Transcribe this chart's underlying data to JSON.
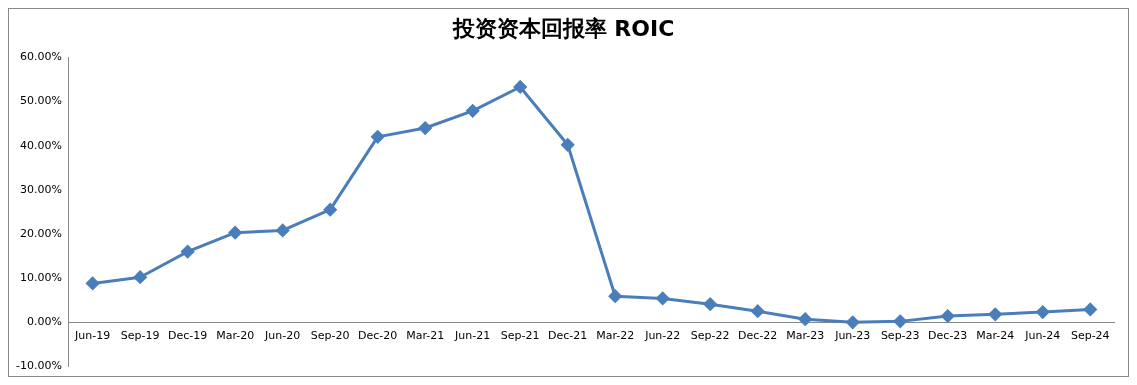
{
  "chart_data": {
    "type": "line",
    "title": "投资资本回报率 ROIC",
    "categories": [
      "Jun-19",
      "Sep-19",
      "Dec-19",
      "Mar-20",
      "Jun-20",
      "Sep-20",
      "Dec-20",
      "Mar-21",
      "Jun-21",
      "Sep-21",
      "Dec-21",
      "Mar-22",
      "Jun-22",
      "Sep-22",
      "Dec-22",
      "Mar-23",
      "Jun-23",
      "Sep-23",
      "Dec-23",
      "Mar-24",
      "Jun-24",
      "Sep-24"
    ],
    "series": [
      {
        "color": "#4a7ebb",
        "values": [
          8.8,
          10.2,
          16.0,
          20.3,
          20.8,
          25.5,
          42.0,
          44.0,
          47.9,
          53.3,
          40.2,
          5.9,
          5.4,
          4.1,
          2.5,
          0.7,
          0,
          0.2,
          1.4,
          1.8,
          2.3,
          2.9
        ]
      }
    ],
    "ylim": [
      -10,
      60
    ],
    "yticks": [
      {
        "value": -10,
        "label": "-10.00%"
      },
      {
        "value": 0,
        "label": "0.00%"
      },
      {
        "value": 10,
        "label": "10.00%"
      },
      {
        "value": 20,
        "label": "20.00%"
      },
      {
        "value": 30,
        "label": "30.00%"
      },
      {
        "value": 40,
        "label": "40.00%"
      },
      {
        "value": 50,
        "label": "50.00%"
      },
      {
        "value": 60,
        "label": "60.00%"
      }
    ],
    "grid": false,
    "legend": false,
    "marker": "diamond",
    "line_style": "solid"
  }
}
